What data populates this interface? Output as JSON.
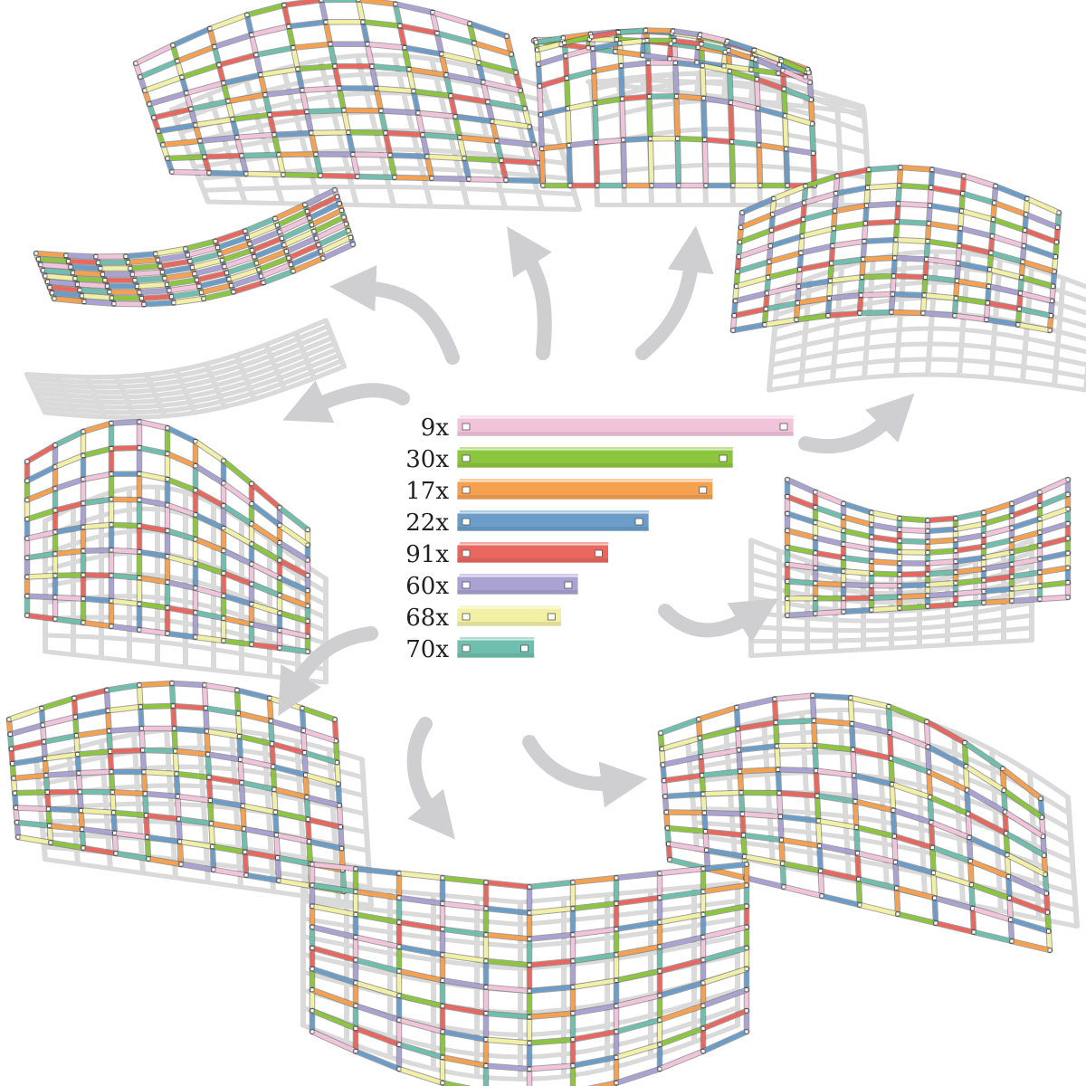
{
  "colors": {
    "pink": "#f2c4dc",
    "green": "#8cc63f",
    "orange": "#f5a150",
    "blue": "#6b9dc8",
    "red": "#e8675f",
    "purple": "#a9a2d2",
    "yellow": "#f1f0a4",
    "teal": "#6fbfae",
    "shadow": "#dadada",
    "arrow": "#cfcfd2"
  },
  "legend": [
    {
      "count": "9x",
      "color": "pink",
      "length": 1.0
    },
    {
      "count": "30x",
      "color": "green",
      "length": 0.82
    },
    {
      "count": "17x",
      "color": "orange",
      "length": 0.76
    },
    {
      "count": "22x",
      "color": "blue",
      "length": 0.57
    },
    {
      "count": "91x",
      "color": "red",
      "length": 0.45
    },
    {
      "count": "60x",
      "color": "purple",
      "length": 0.36
    },
    {
      "count": "68x",
      "color": "yellow",
      "length": 0.31
    },
    {
      "count": "70x",
      "color": "teal",
      "length": 0.23
    }
  ],
  "shapes": [
    {
      "name": "saddle-top-left"
    },
    {
      "name": "dome-top-right"
    },
    {
      "name": "twisted-left"
    },
    {
      "name": "vault-right-upper"
    },
    {
      "name": "wave-left"
    },
    {
      "name": "bowl-right"
    },
    {
      "name": "mound-left-lower"
    },
    {
      "name": "arch-right-lower"
    },
    {
      "name": "hyperbolic-bottom"
    }
  ]
}
